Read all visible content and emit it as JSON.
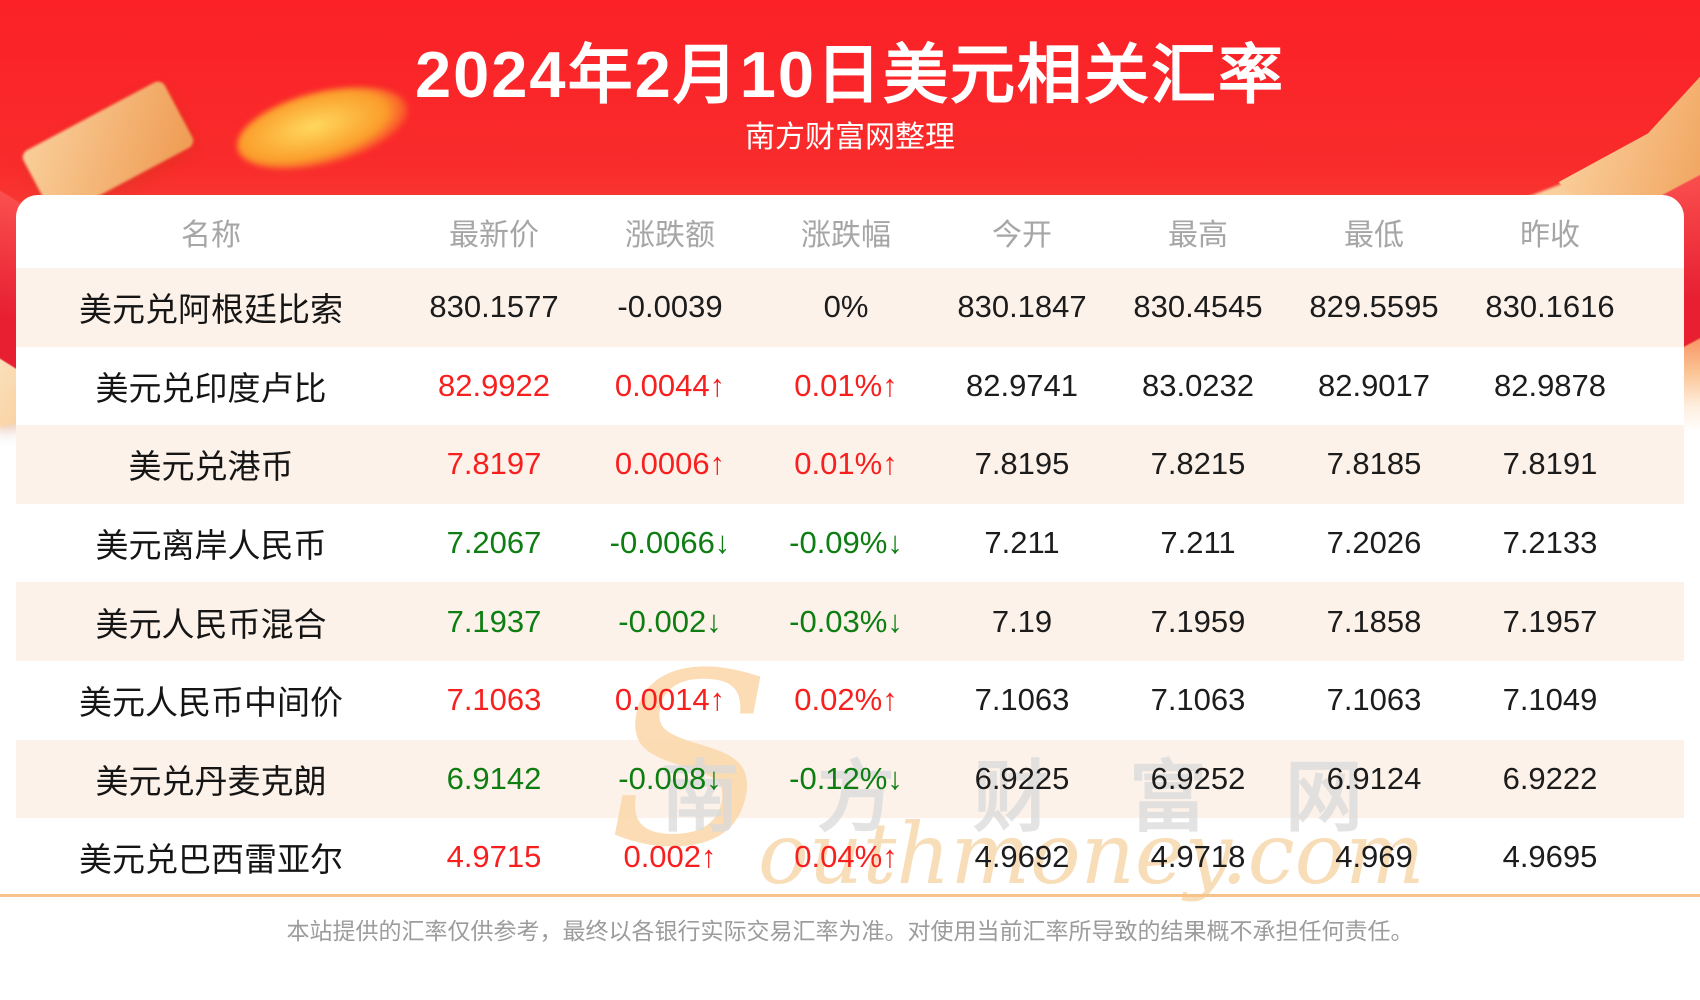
{
  "page": {
    "title": "2024年2月10日美元相关汇率",
    "subtitle": "南方财富网整理",
    "disclaimer": "本站提供的汇率仅供参考，最终以各银行实际交易汇率为准。对使用当前汇率所导致的结果概不承担任何责任。"
  },
  "watermark": {
    "cn": "南方财富网",
    "en_initial": "S",
    "en_rest": "outhmoney.com"
  },
  "icons": {
    "arrow_up": "↑",
    "arrow_down": "↓"
  },
  "colors": {
    "up_red": "#f81f1f",
    "down_green": "#0e7e12",
    "flat_black": "#1c1c1c",
    "banner_red": "#fb2127",
    "row_alt_bg": "#fdf2ea",
    "divider_tan": "#f6c38b",
    "header_gray": "#a6a6a6"
  },
  "chart_data": {
    "type": "table",
    "title": "2024年2月10日美元相关汇率",
    "subtitle": "南方财富网整理",
    "columns": [
      "名称",
      "最新价",
      "涨跌额",
      "涨跌幅",
      "今开",
      "最高",
      "最低",
      "昨收"
    ],
    "rows": [
      {
        "name": "美元兑阿根廷比索",
        "latest": "830.1577",
        "change": "-0.0039",
        "pct": "0%",
        "trend": "flat",
        "open": "830.1847",
        "high": "830.4545",
        "low": "829.5595",
        "prev": "830.1616"
      },
      {
        "name": "美元兑印度卢比",
        "latest": "82.9922",
        "change": "0.0044",
        "pct": "0.01%",
        "trend": "up",
        "open": "82.9741",
        "high": "83.0232",
        "low": "82.9017",
        "prev": "82.9878"
      },
      {
        "name": "美元兑港币",
        "latest": "7.8197",
        "change": "0.0006",
        "pct": "0.01%",
        "trend": "up",
        "open": "7.8195",
        "high": "7.8215",
        "low": "7.8185",
        "prev": "7.8191"
      },
      {
        "name": "美元离岸人民币",
        "latest": "7.2067",
        "change": "-0.0066",
        "pct": "-0.09%",
        "trend": "down",
        "open": "7.211",
        "high": "7.211",
        "low": "7.2026",
        "prev": "7.2133"
      },
      {
        "name": "美元人民币混合",
        "latest": "7.1937",
        "change": "-0.002",
        "pct": "-0.03%",
        "trend": "down",
        "open": "7.19",
        "high": "7.1959",
        "low": "7.1858",
        "prev": "7.1957"
      },
      {
        "name": "美元人民币中间价",
        "latest": "7.1063",
        "change": "0.0014",
        "pct": "0.02%",
        "trend": "up",
        "open": "7.1063",
        "high": "7.1063",
        "low": "7.1063",
        "prev": "7.1049"
      },
      {
        "name": "美元兑丹麦克朗",
        "latest": "6.9142",
        "change": "-0.008",
        "pct": "-0.12%",
        "trend": "down",
        "open": "6.9225",
        "high": "6.9252",
        "low": "6.9124",
        "prev": "6.9222"
      },
      {
        "name": "美元兑巴西雷亚尔",
        "latest": "4.9715",
        "change": "0.002",
        "pct": "0.04%",
        "trend": "up",
        "open": "4.9692",
        "high": "4.9718",
        "low": "4.969",
        "prev": "4.9695"
      }
    ]
  }
}
